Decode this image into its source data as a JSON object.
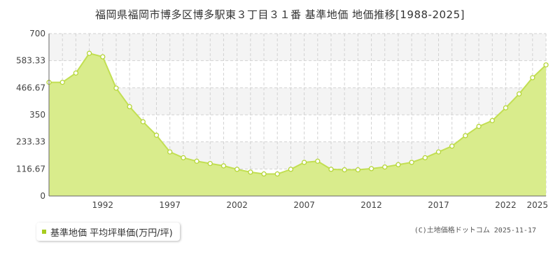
{
  "chart_data": {
    "type": "area",
    "title": "福岡県福岡市博多区博多駅東３丁目３１番 基準地価 地価推移[1988-2025]",
    "x": [
      1988,
      1989,
      1990,
      1991,
      1992,
      1993,
      1994,
      1995,
      1996,
      1997,
      1998,
      1999,
      2000,
      2001,
      2002,
      2003,
      2004,
      2005,
      2006,
      2007,
      2008,
      2009,
      2010,
      2011,
      2012,
      2013,
      2014,
      2015,
      2016,
      2017,
      2018,
      2019,
      2020,
      2021,
      2022,
      2023,
      2024,
      2025
    ],
    "series": [
      {
        "name": "基準地価 平均坪単価(万円/坪)",
        "values": [
          490,
          490,
          530,
          615,
          600,
          465,
          385,
          320,
          262,
          190,
          165,
          150,
          140,
          130,
          115,
          103,
          95,
          95,
          115,
          145,
          150,
          115,
          113,
          113,
          118,
          125,
          135,
          145,
          165,
          190,
          215,
          260,
          300,
          325,
          380,
          440,
          510,
          565
        ]
      }
    ],
    "y_ticks": [
      "0",
      "116.67",
      "233.33",
      "350",
      "466.67",
      "583.33",
      "700"
    ],
    "x_ticks": [
      "1992",
      "1997",
      "2002",
      "2007",
      "2012",
      "2017",
      "2022",
      "2025"
    ],
    "ylim": [
      0,
      700
    ],
    "xlim": [
      1988,
      2025
    ],
    "grid": true,
    "legend_position": "bottom-left",
    "colors": {
      "fill": "#d9ec8c",
      "line": "#c2df52",
      "marker": "#b6d63a",
      "legend": "#a7cc1f",
      "band": "#f4f4f4",
      "grid": "#d2d2d2"
    }
  },
  "legend": {
    "label": "基準地価 平均坪単価(万円/坪)"
  },
  "copyright": "(C)土地価格ドットコム 2025-11-17"
}
